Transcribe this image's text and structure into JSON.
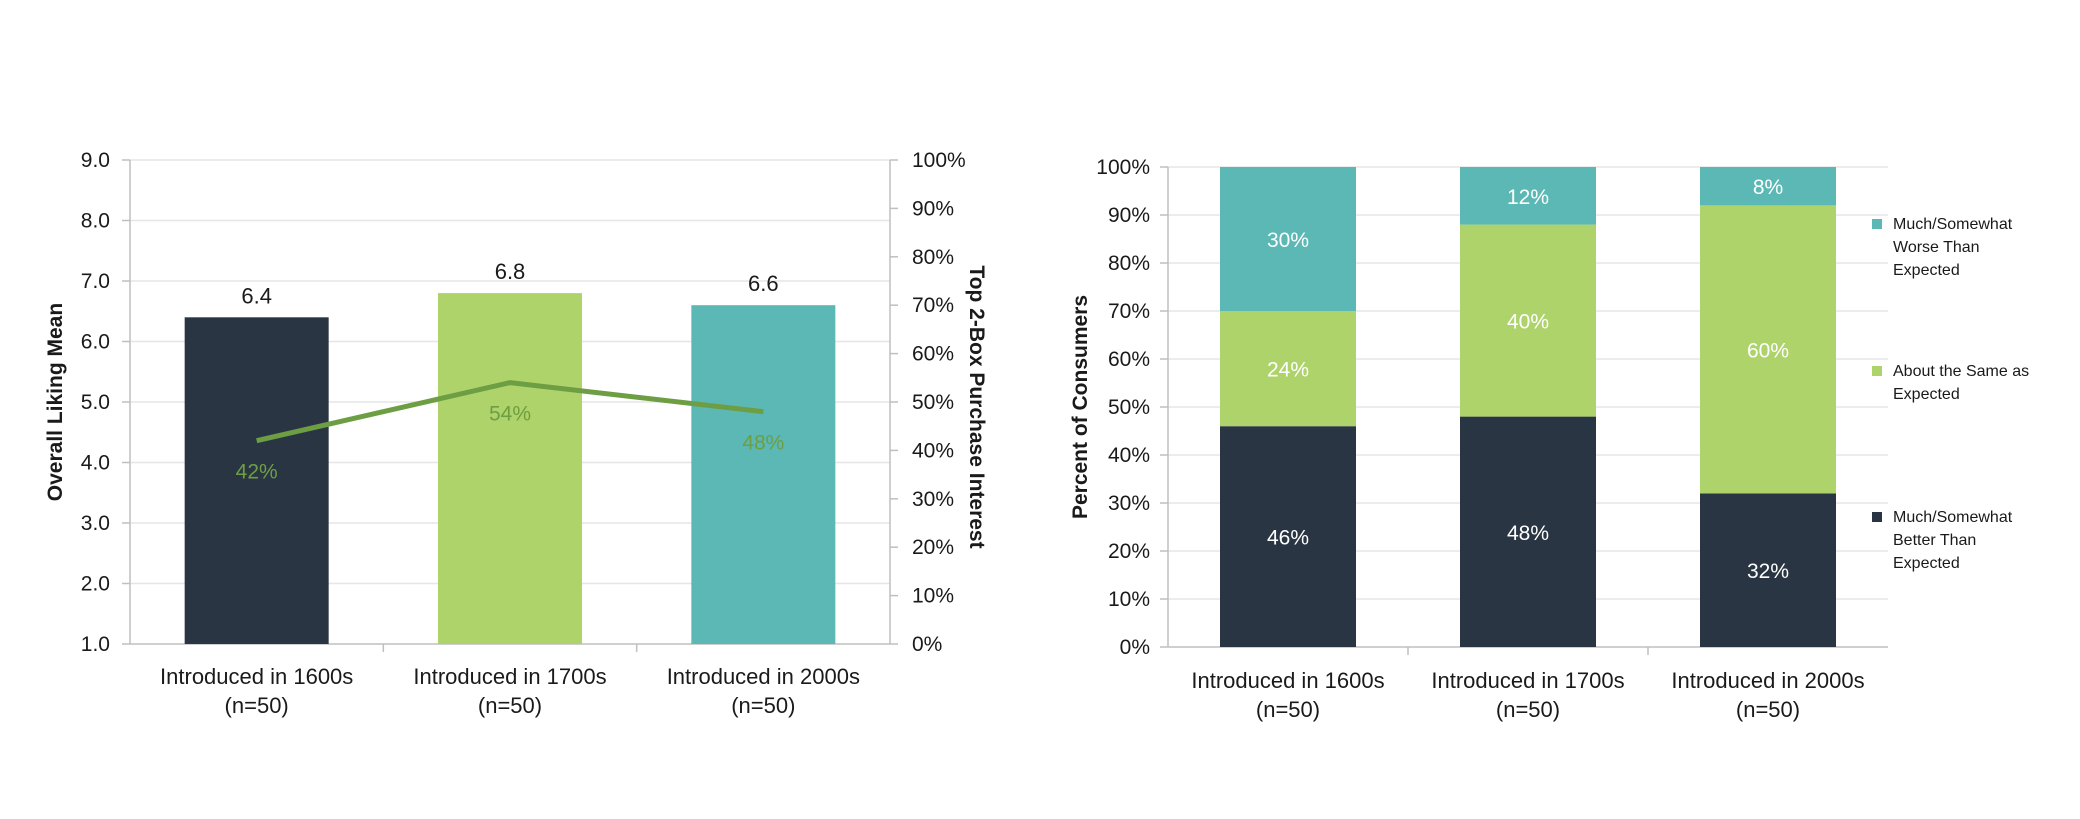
{
  "colors": {
    "navy": "#2a3544",
    "light_green": "#afd36b",
    "teal": "#5bb8b4",
    "line_green": "#6e9e43",
    "axis": "#bfbfbf",
    "grid": "#e6e6e6"
  },
  "chart_data": [
    {
      "type": "bar",
      "categories": [
        "Introduced in 1600s\n(n=50)",
        "Introduced in 1700s\n(n=50)",
        "Introduced in 2000s\n(n=50)"
      ],
      "series": [
        {
          "name": "",
          "type": "bar",
          "values": [
            6.4,
            6.8,
            6.6
          ],
          "labels": [
            "6.4",
            "6.8",
            "6.6"
          ],
          "colors": [
            "#2a3544",
            "#afd36b",
            "#5bb8b4"
          ]
        },
        {
          "name": "",
          "type": "line",
          "axis": "secondary",
          "values": [
            42,
            54,
            48
          ],
          "labels": [
            "42%",
            "54%",
            "48%"
          ],
          "color": "#6e9e43"
        }
      ],
      "ylabel": "Overall Liking Mean",
      "ylim": [
        1.0,
        9.0
      ],
      "yticks": [
        "1.0",
        "2.0",
        "3.0",
        "4.0",
        "5.0",
        "6.0",
        "7.0",
        "8.0",
        "9.0"
      ],
      "y2label": "Top 2-Box Purchase Interest",
      "y2lim": [
        0,
        100
      ],
      "y2ticks": [
        "0%",
        "10%",
        "20%",
        "30%",
        "40%",
        "50%",
        "60%",
        "70%",
        "80%",
        "90%",
        "100%"
      ],
      "grid": true
    },
    {
      "type": "bar",
      "stacked": true,
      "categories": [
        "Introduced in 1600s\n(n=50)",
        "Introduced in 1700s\n(n=50)",
        "Introduced in 2000s\n(n=50)"
      ],
      "series": [
        {
          "name": "Much/Somewhat Better Than Expected",
          "values": [
            46,
            48,
            32
          ],
          "labels": [
            "46%",
            "48%",
            "32%"
          ],
          "color": "#2a3544"
        },
        {
          "name": "About the Same as Expected",
          "values": [
            24,
            40,
            60
          ],
          "labels": [
            "24%",
            "40%",
            "60%"
          ],
          "color": "#afd36b"
        },
        {
          "name": "Much/Somewhat Worse Than Expected",
          "values": [
            30,
            12,
            8
          ],
          "labels": [
            "30%",
            "12%",
            "8%"
          ],
          "color": "#5bb8b4"
        }
      ],
      "ylabel": "Percent of Consumers",
      "ylim": [
        0,
        100
      ],
      "yticks": [
        "0%",
        "10%",
        "20%",
        "30%",
        "40%",
        "50%",
        "60%",
        "70%",
        "80%",
        "90%",
        "100%"
      ],
      "legend": {
        "placement": "right",
        "items": [
          {
            "lines": [
              "Much/Somewhat",
              "Worse Than",
              "Expected"
            ],
            "color": "#5bb8b4"
          },
          {
            "lines": [
              "About the Same as",
              "Expected"
            ],
            "color": "#afd36b"
          },
          {
            "lines": [
              "Much/Somewhat",
              "Better Than",
              "Expected"
            ],
            "color": "#2a3544"
          }
        ]
      },
      "grid": true
    }
  ]
}
